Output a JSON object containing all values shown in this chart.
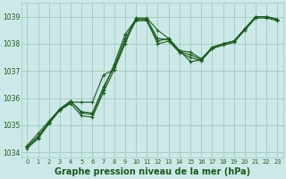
{
  "title": "Graphe pression niveau de la mer (hPa)",
  "background_color": "#cde8e8",
  "grid_color": "#a0ccbb",
  "line_color": "#1a5c1a",
  "xlim": [
    -0.5,
    23.5
  ],
  "ylim": [
    1033.8,
    1039.5
  ],
  "yticks": [
    1034,
    1035,
    1036,
    1037,
    1038,
    1039
  ],
  "xticks": [
    0,
    1,
    2,
    3,
    4,
    5,
    6,
    7,
    8,
    9,
    10,
    11,
    12,
    13,
    14,
    15,
    16,
    17,
    18,
    19,
    20,
    21,
    22,
    23
  ],
  "series": [
    [
      1034.2,
      1034.6,
      1035.1,
      1035.55,
      1035.85,
      1035.85,
      1035.85,
      1036.85,
      1037.05,
      1038.0,
      1038.95,
      1038.95,
      1038.5,
      1038.2,
      1037.75,
      1037.7,
      1037.45,
      1037.85,
      1038.0,
      1038.1,
      1038.55,
      1039.0,
      1039.0,
      1038.9
    ],
    [
      1034.25,
      1034.7,
      1035.15,
      1035.6,
      1035.9,
      1035.45,
      1035.4,
      1036.3,
      1037.25,
      1038.35,
      1038.9,
      1038.9,
      1038.1,
      1038.2,
      1037.75,
      1037.35,
      1037.4,
      1037.85,
      1038.0,
      1038.1,
      1038.55,
      1039.0,
      1039.0,
      1038.9
    ],
    [
      1034.2,
      1034.55,
      1035.1,
      1035.6,
      1035.88,
      1035.5,
      1035.45,
      1036.4,
      1037.15,
      1038.2,
      1038.9,
      1038.9,
      1038.2,
      1038.15,
      1037.72,
      1037.6,
      1037.42,
      1037.88,
      1038.0,
      1038.1,
      1038.55,
      1039.0,
      1039.0,
      1038.9
    ],
    [
      1034.15,
      1034.5,
      1035.05,
      1035.55,
      1035.8,
      1035.35,
      1035.3,
      1036.2,
      1037.05,
      1038.1,
      1038.85,
      1038.85,
      1038.0,
      1038.1,
      1037.68,
      1037.5,
      1037.38,
      1037.82,
      1037.95,
      1038.05,
      1038.5,
      1038.95,
      1038.95,
      1038.85
    ]
  ],
  "ytick_fontsize": 5.5,
  "xtick_fontsize": 4.8,
  "title_fontsize": 7.0
}
